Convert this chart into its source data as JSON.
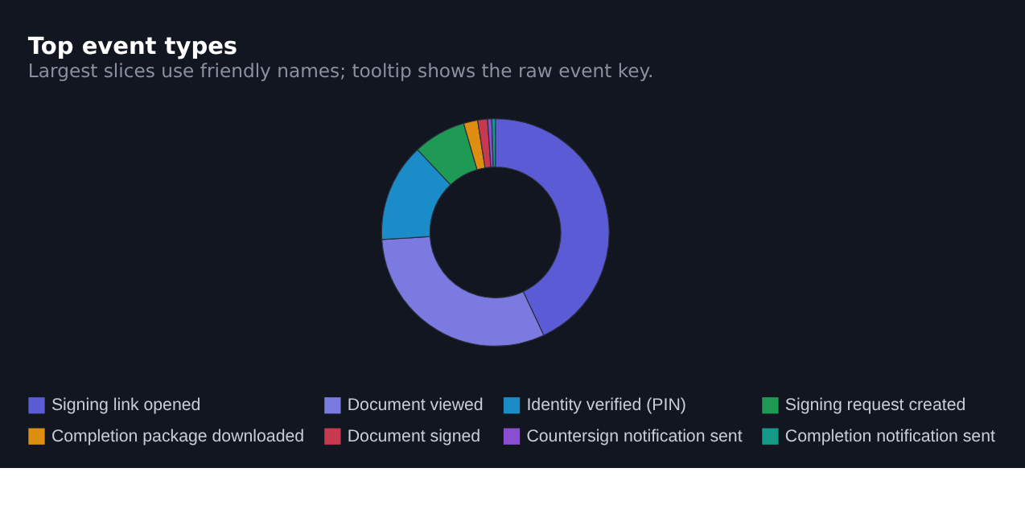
{
  "chart_data": {
    "type": "donut",
    "title": "Top event types",
    "subtitle": "Largest slices use friendly names; tooltip shows the raw event key.",
    "categories": [
      "Signing link opened",
      "Document viewed",
      "Identity verified (PIN)",
      "Signing request created",
      "Completion package downloaded",
      "Document signed",
      "Countersign notification sent",
      "Completion notification sent"
    ],
    "values": [
      43,
      31,
      14,
      7.5,
      2,
      1.4,
      0.6,
      0.5
    ],
    "colors": [
      "#5b5bd6",
      "#7a7ae0",
      "#1a8cc8",
      "#1f9a55",
      "#de8f12",
      "#c8384f",
      "#8a4fd1",
      "#159a88"
    ],
    "legend": "bottom"
  }
}
